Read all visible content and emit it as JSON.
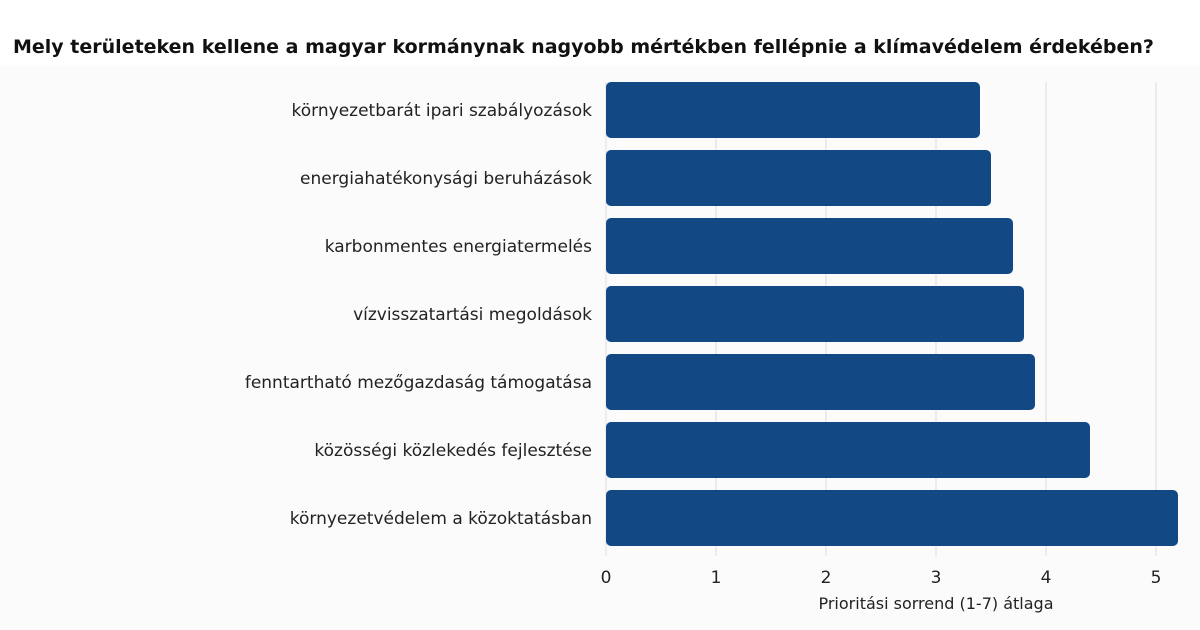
{
  "title": "Mely területeken kellene a magyar kormánynak nagyobb mértékben fellépnie a klímavédelem érdekében?",
  "colors": {
    "bar": "#124985",
    "grid": "#dddddd",
    "background": "#fbfbfb"
  },
  "chart_data": {
    "type": "bar",
    "orientation": "horizontal",
    "categories": [
      "környezetbarát ipari szabályozások",
      "energiahatékonysági beruházások",
      "karbonmentes energiatermelés",
      "vízvisszatartási megoldások",
      "fenntartható mezőgazdaság támogatása",
      "közösségi közlekedés fejlesztése",
      "környezetvédelem a közoktatásban"
    ],
    "values": [
      3.4,
      3.5,
      3.7,
      3.8,
      3.9,
      4.4,
      5.2
    ],
    "xlabel": "Prioritási sorrend (1-7) átlaga",
    "xticks": [
      "0",
      "1",
      "2",
      "3",
      "4",
      "5"
    ],
    "xlim": [
      0,
      5.2
    ],
    "grid": true
  }
}
